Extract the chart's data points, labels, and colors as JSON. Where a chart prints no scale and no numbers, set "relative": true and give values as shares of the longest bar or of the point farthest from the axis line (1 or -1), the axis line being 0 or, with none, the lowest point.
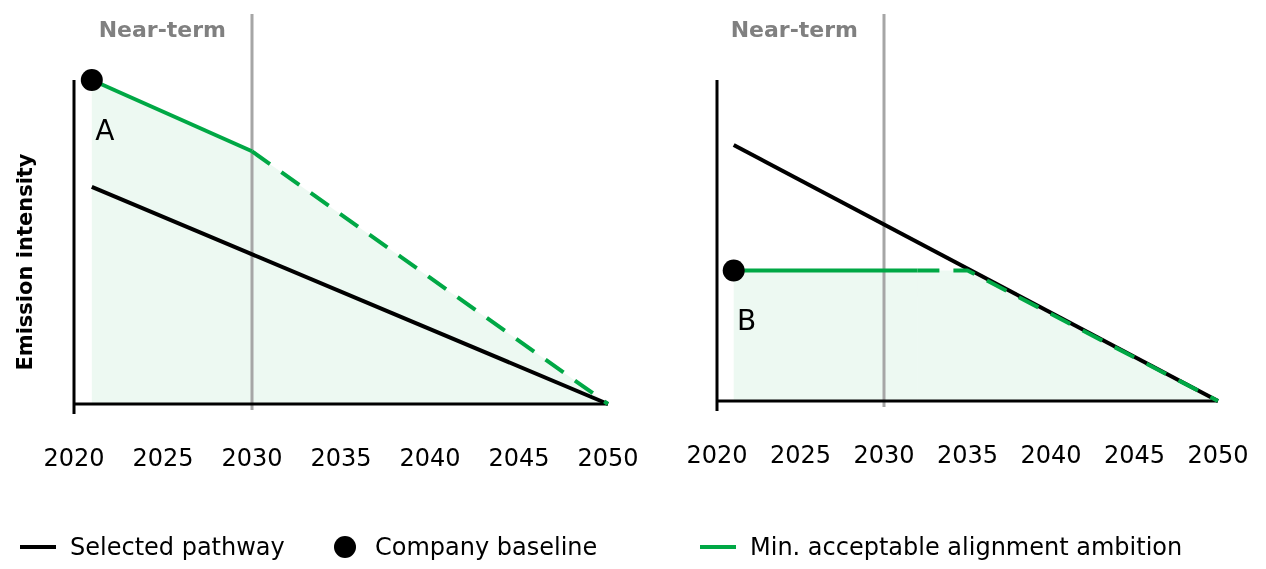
{
  "chart_data": [
    {
      "type": "line",
      "relative": true,
      "ylabel": "Emission intensity",
      "xlim": [
        2020,
        2050
      ],
      "xticks": [
        2020,
        2025,
        2030,
        2035,
        2040,
        2045,
        2050
      ],
      "legend": "bottom",
      "annotations": [
        "A"
      ],
      "ref_lines": [
        {
          "axis": "x",
          "value": 2030,
          "label": "Near-term",
          "color": "#a6a6a6"
        }
      ],
      "series": [
        {
          "name": "Selected pathway",
          "color": "#000000",
          "x": [
            2021,
            2050
          ],
          "values": [
            0.67,
            0
          ]
        },
        {
          "type": "scatter",
          "name": "Company baseline",
          "color": "#000000",
          "marker": "circle",
          "x": [
            2021
          ],
          "values": [
            1
          ]
        },
        {
          "type": "area",
          "name": "Min. acceptable alignment ambition",
          "color": "#00a845",
          "x": [
            2021,
            2030
          ],
          "values": [
            1,
            0.78
          ]
        },
        {
          "type": "area",
          "color": "#00a845",
          "line_style": "dashed",
          "x": [
            2030,
            2040,
            2050
          ],
          "values": [
            0.78,
            0.39,
            0
          ]
        }
      ]
    },
    {
      "type": "line",
      "relative": true,
      "xlim": [
        2020,
        2050
      ],
      "xticks": [
        2020,
        2025,
        2030,
        2035,
        2040,
        2045,
        2050
      ],
      "legend": false,
      "annotations": [
        "B"
      ],
      "ref_lines": [
        {
          "axis": "x",
          "value": 2030,
          "label": "Near-term",
          "color": "#a6a6a6"
        }
      ],
      "series": [
        {
          "color": "#000000",
          "x": [
            2021,
            2050
          ],
          "values": [
            1,
            0
          ]
        },
        {
          "type": "scatter",
          "color": "#000000",
          "marker": "circle",
          "x": [
            2021
          ],
          "values": [
            0.51
          ]
        },
        {
          "type": "area",
          "color": "#00a845",
          "x": [
            2021,
            2032
          ],
          "values": [
            0.51,
            0.51
          ]
        },
        {
          "type": "area",
          "color": "#00a845",
          "line_style": "dashed",
          "x": [
            2032,
            2035,
            2050
          ],
          "values": [
            0.51,
            0.51,
            0
          ]
        }
      ]
    }
  ]
}
